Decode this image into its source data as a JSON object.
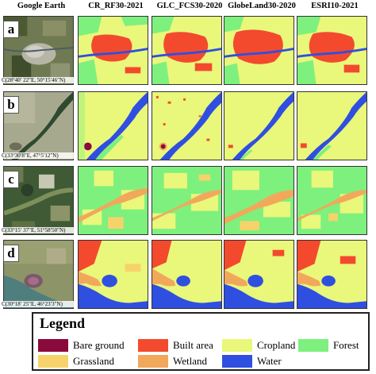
{
  "headers": [
    "Google Earth",
    "CR_RF30-2021",
    "GLC_FCS30-2020",
    "GlobeLand30-2020",
    "ESRI10-2021"
  ],
  "rows": [
    {
      "label": "a",
      "coord": "C(28°40′ 22″E, 50°15′46″N)"
    },
    {
      "label": "b",
      "coord": "C(33°30′8″E, 47°5′12″N)"
    },
    {
      "label": "c",
      "coord": "C(33°15′ 37″E, 51°58′50″N)"
    },
    {
      "label": "d",
      "coord": "C(30°18′ 25″E, 46°23′3″N)"
    }
  ],
  "legend": {
    "title": "Legend",
    "items": [
      {
        "name": "Bare ground",
        "color": "#8b0a3c"
      },
      {
        "name": "Built area",
        "color": "#f34a2e"
      },
      {
        "name": "Cropland",
        "color": "#e9f77a"
      },
      {
        "name": "Forest",
        "color": "#7ef07e"
      },
      {
        "name": "Grassland",
        "color": "#f6d36a"
      },
      {
        "name": "Wetland",
        "color": "#f2a85a"
      },
      {
        "name": "Water",
        "color": "#2f4fe0"
      }
    ]
  }
}
